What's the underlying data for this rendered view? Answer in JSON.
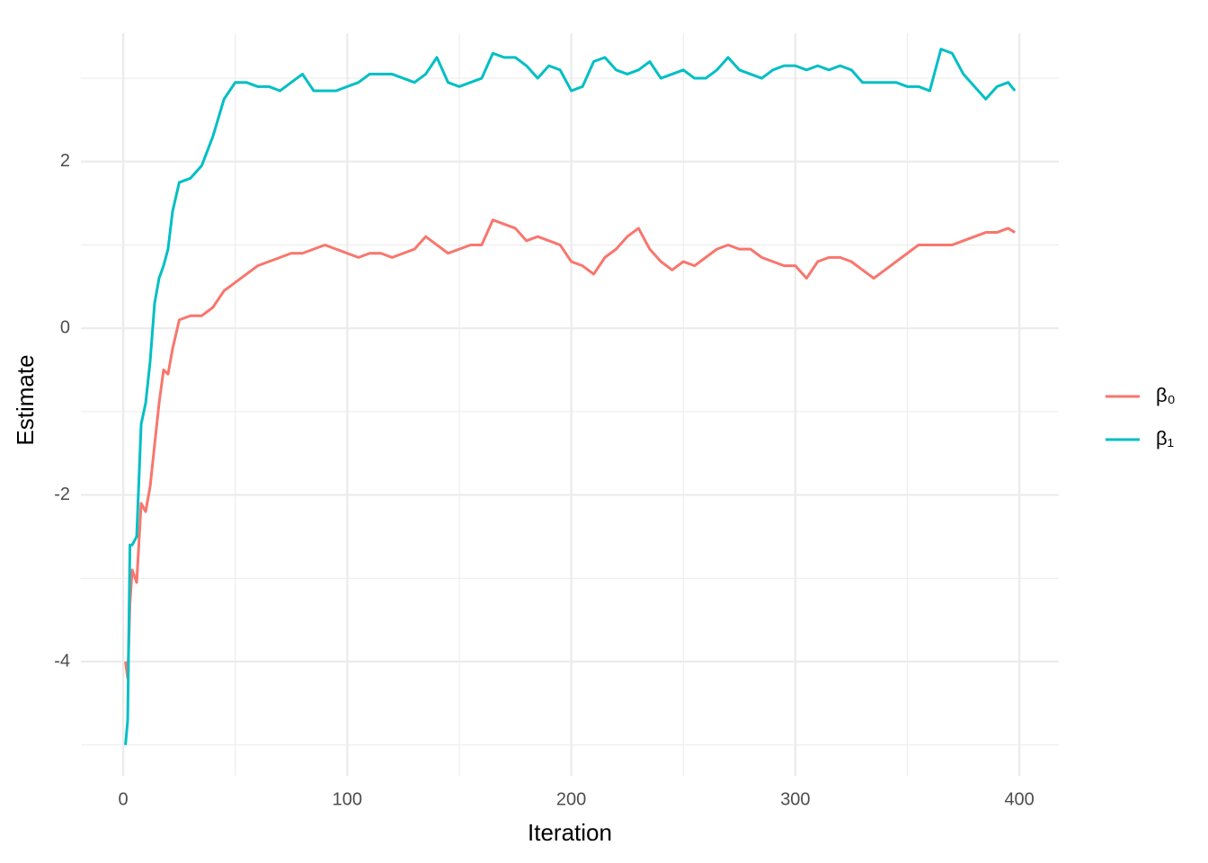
{
  "chart_data": {
    "type": "line",
    "x_label": "Iteration",
    "y_label": "Estimate",
    "x": [
      1,
      2,
      3,
      4,
      6,
      8,
      10,
      12,
      14,
      16,
      18,
      20,
      22,
      25,
      30,
      35,
      40,
      45,
      50,
      55,
      60,
      65,
      70,
      75,
      80,
      85,
      90,
      95,
      100,
      105,
      110,
      115,
      120,
      125,
      130,
      135,
      140,
      145,
      150,
      155,
      160,
      165,
      170,
      175,
      180,
      185,
      190,
      195,
      200,
      205,
      210,
      215,
      220,
      225,
      230,
      235,
      240,
      245,
      250,
      255,
      260,
      265,
      270,
      275,
      280,
      285,
      290,
      295,
      300,
      305,
      310,
      315,
      320,
      325,
      330,
      335,
      340,
      345,
      350,
      355,
      360,
      365,
      370,
      375,
      380,
      385,
      390,
      395,
      398
    ],
    "series": [
      {
        "name": "β₀",
        "color": "#F8766D",
        "values": [
          -4.0,
          -4.2,
          -3.3,
          -2.9,
          -3.05,
          -2.1,
          -2.2,
          -1.9,
          -1.4,
          -0.9,
          -0.5,
          -0.55,
          -0.25,
          0.1,
          0.15,
          0.15,
          0.25,
          0.45,
          0.55,
          0.65,
          0.75,
          0.8,
          0.85,
          0.9,
          0.9,
          0.95,
          1.0,
          0.95,
          0.9,
          0.85,
          0.9,
          0.9,
          0.85,
          0.9,
          0.95,
          1.1,
          1.0,
          0.9,
          0.95,
          1.0,
          1.0,
          1.3,
          1.25,
          1.2,
          1.05,
          1.1,
          1.05,
          1.0,
          0.8,
          0.75,
          0.65,
          0.85,
          0.95,
          1.1,
          1.2,
          0.95,
          0.8,
          0.7,
          0.8,
          0.75,
          0.85,
          0.95,
          1.0,
          0.95,
          0.95,
          0.85,
          0.8,
          0.75,
          0.75,
          0.6,
          0.8,
          0.85,
          0.85,
          0.8,
          0.7,
          0.6,
          0.7,
          0.8,
          0.9,
          1.0,
          1.0,
          1.0,
          1.0,
          1.05,
          1.1,
          1.15,
          1.15,
          1.2,
          1.15
        ]
      },
      {
        "name": "β₁",
        "color": "#00BFC4",
        "values": [
          -5.0,
          -4.7,
          -2.6,
          -2.6,
          -2.5,
          -1.15,
          -0.9,
          -0.4,
          0.3,
          0.6,
          0.75,
          0.95,
          1.4,
          1.75,
          1.8,
          1.95,
          2.3,
          2.75,
          2.95,
          2.95,
          2.9,
          2.9,
          2.85,
          2.95,
          3.05,
          2.85,
          2.85,
          2.85,
          2.9,
          2.95,
          3.05,
          3.05,
          3.05,
          3.0,
          2.95,
          3.05,
          3.25,
          2.95,
          2.9,
          2.95,
          3.0,
          3.3,
          3.25,
          3.25,
          3.15,
          3.0,
          3.15,
          3.1,
          2.85,
          2.9,
          3.2,
          3.25,
          3.1,
          3.05,
          3.1,
          3.2,
          3.0,
          3.05,
          3.1,
          3.0,
          3.0,
          3.1,
          3.25,
          3.1,
          3.05,
          3.0,
          3.1,
          3.15,
          3.15,
          3.1,
          3.15,
          3.1,
          3.15,
          3.1,
          2.95,
          2.95,
          2.95,
          2.95,
          2.9,
          2.9,
          2.85,
          3.35,
          3.3,
          3.05,
          2.9,
          2.75,
          2.9,
          2.95,
          2.85
        ]
      }
    ],
    "xlim": [
      -18.9,
      417.6
    ],
    "ylim": [
      -5.37,
      3.54
    ],
    "xticks": [
      0,
      100,
      200,
      300,
      400
    ],
    "yticks": [
      -4,
      -2,
      0,
      2
    ],
    "x_minor_ticks": [
      50,
      150,
      250,
      350
    ],
    "y_minor_ticks": [
      -5,
      -3,
      -1,
      1,
      3
    ],
    "grid": true
  }
}
